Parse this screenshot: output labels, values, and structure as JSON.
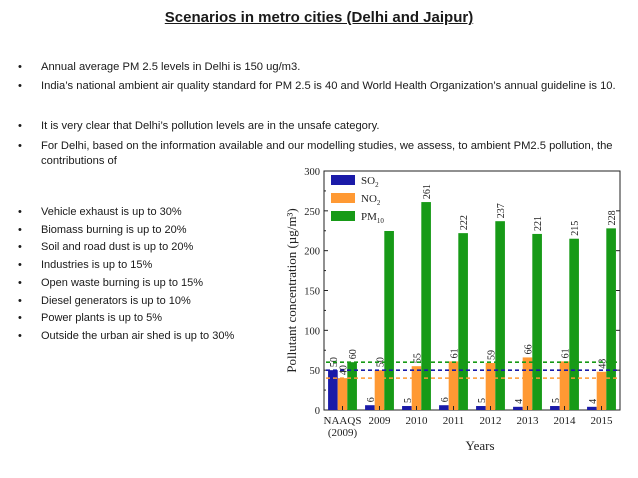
{
  "title": "Scenarios in metro cities (Delhi and Jaipur)",
  "bullets": [
    "Annual average PM 2.5 levels in Delhi is 150 ug/m3.",
    "India’s national ambient air quality standard for PM 2.5 is 40 and World Health Organization’s annual guideline is 10.",
    "It is very clear that Delhi’s pollution levels are in the unsafe category.",
    "For Delhi, based on the information available and our modelling studies, we assess, to ambient PM2.5 pollution, the contributions of"
  ],
  "sub_bullets": [
    "Vehicle exhaust is up to 30%",
    "Biomass burning is up to 20%",
    "Soil and road dust is up to 20%",
    "Industries is up to 15%",
    "Open waste burning is up to 15%",
    "Diesel generators is up to 10%",
    "Power plants is up to 5%",
    "Outside the urban air shed is up to 30%"
  ],
  "bullet_symbol": "•",
  "chart_data": {
    "type": "bar",
    "categories": [
      "NAAQS\n(2009)",
      "2009",
      "2010",
      "2011",
      "2012",
      "2013",
      "2014",
      "2015"
    ],
    "series": [
      {
        "name": "SO2",
        "color": "#1a1aa8",
        "values": [
          50,
          6,
          5,
          6,
          5,
          4,
          5,
          4
        ]
      },
      {
        "name": "NO2",
        "color": "#ff9933",
        "values": [
          40,
          50,
          55,
          61,
          59,
          66,
          61,
          48
        ]
      },
      {
        "name": "PM10",
        "color": "#179a17",
        "values": [
          60,
          252,
          261,
          222,
          237,
          221,
          215,
          228
        ]
      }
    ],
    "bar_labels": [
      [
        "50",
        "40",
        "60"
      ],
      [
        "6",
        "50",
        "252"
      ],
      [
        "5",
        "55",
        "261"
      ],
      [
        "6",
        "61",
        "222"
      ],
      [
        "5",
        "59",
        "237"
      ],
      [
        "4",
        "66",
        "221"
      ],
      [
        "5",
        "61",
        "215"
      ],
      [
        "4",
        "48",
        "228"
      ]
    ],
    "reference_lines": [
      {
        "value": 60,
        "color": "#179a17"
      },
      {
        "value": 50,
        "color": "#1a1aa8"
      },
      {
        "value": 40,
        "color": "#ff9933"
      }
    ],
    "xlabel": "Years",
    "ylabel": "Pollutant concentration (µg/m³)",
    "ylim": [
      0,
      300
    ],
    "yticks": [
      "0",
      "50",
      "100",
      "150",
      "200",
      "250",
      "300"
    ],
    "legend": {
      "position": "top-left",
      "labels": [
        "SO2",
        "NO2",
        "PM10"
      ]
    }
  }
}
